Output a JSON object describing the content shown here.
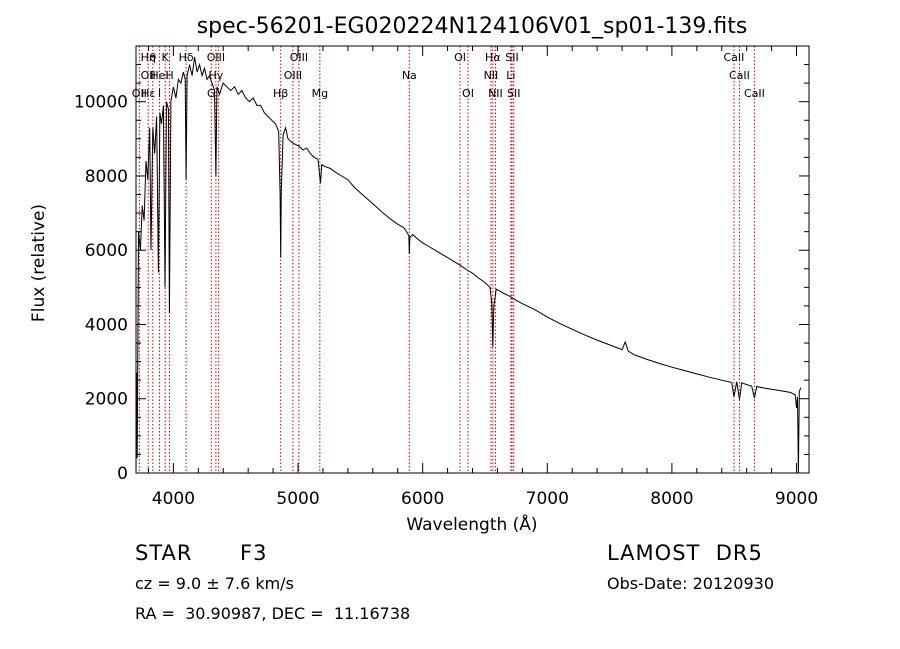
{
  "chart_data": {
    "type": "line",
    "title": "spec-56201-EG020224N124106V01_sp01-139.fits",
    "xlabel": "Wavelength (Å)",
    "ylabel": "Flux (relative)",
    "xlim": [
      3700,
      9100
    ],
    "ylim": [
      0,
      11500
    ],
    "x_ticks": [
      4000,
      5000,
      6000,
      7000,
      8000,
      9000
    ],
    "y_ticks": [
      0,
      2000,
      4000,
      6000,
      8000,
      10000
    ],
    "series": [
      {
        "points": [
          [
            3700,
            0
          ],
          [
            3705,
            2700
          ],
          [
            3710,
            400
          ],
          [
            3720,
            6500
          ],
          [
            3735,
            6000
          ],
          [
            3750,
            7200
          ],
          [
            3765,
            6800
          ],
          [
            3780,
            8400
          ],
          [
            3795,
            7900
          ],
          [
            3810,
            9300
          ],
          [
            3820,
            6000
          ],
          [
            3835,
            9300
          ],
          [
            3850,
            8600
          ],
          [
            3865,
            9600
          ],
          [
            3880,
            5400
          ],
          [
            3892,
            9700
          ],
          [
            3905,
            9400
          ],
          [
            3920,
            9900
          ],
          [
            3933,
            5000
          ],
          [
            3945,
            10000
          ],
          [
            3960,
            9800
          ],
          [
            3968,
            4300
          ],
          [
            3980,
            10000
          ],
          [
            4000,
            10400
          ],
          [
            4020,
            10100
          ],
          [
            4040,
            10600
          ],
          [
            4060,
            10500
          ],
          [
            4080,
            10800
          ],
          [
            4095,
            10600
          ],
          [
            4102,
            7900
          ],
          [
            4110,
            10700
          ],
          [
            4130,
            11000
          ],
          [
            4150,
            10700
          ],
          [
            4170,
            11200
          ],
          [
            4190,
            10800
          ],
          [
            4210,
            11000
          ],
          [
            4230,
            10700
          ],
          [
            4250,
            10900
          ],
          [
            4270,
            10600
          ],
          [
            4290,
            10700
          ],
          [
            4310,
            10500
          ],
          [
            4330,
            10300
          ],
          [
            4341,
            8000
          ],
          [
            4350,
            10400
          ],
          [
            4370,
            10200
          ],
          [
            4400,
            10500
          ],
          [
            4430,
            10400
          ],
          [
            4460,
            10300
          ],
          [
            4490,
            10400
          ],
          [
            4520,
            10200
          ],
          [
            4550,
            10300
          ],
          [
            4580,
            10100
          ],
          [
            4610,
            10000
          ],
          [
            4640,
            10100
          ],
          [
            4670,
            9900
          ],
          [
            4700,
            9900
          ],
          [
            4730,
            9700
          ],
          [
            4760,
            9600
          ],
          [
            4790,
            9500
          ],
          [
            4820,
            9400
          ],
          [
            4845,
            9200
          ],
          [
            4856,
            7500
          ],
          [
            4861,
            5800
          ],
          [
            4866,
            7600
          ],
          [
            4880,
            9100
          ],
          [
            4900,
            9300
          ],
          [
            4920,
            9000
          ],
          [
            4950,
            8900
          ],
          [
            4980,
            8850
          ],
          [
            5010,
            8800
          ],
          [
            5040,
            8700
          ],
          [
            5070,
            8750
          ],
          [
            5100,
            8600
          ],
          [
            5130,
            8500
          ],
          [
            5160,
            8450
          ],
          [
            5180,
            7800
          ],
          [
            5190,
            8300
          ],
          [
            5220,
            8250
          ],
          [
            5260,
            8200
          ],
          [
            5300,
            8100
          ],
          [
            5350,
            8000
          ],
          [
            5400,
            7900
          ],
          [
            5450,
            7700
          ],
          [
            5500,
            7550
          ],
          [
            5550,
            7400
          ],
          [
            5600,
            7250
          ],
          [
            5650,
            7100
          ],
          [
            5700,
            6950
          ],
          [
            5750,
            6820
          ],
          [
            5800,
            6700
          ],
          [
            5850,
            6600
          ],
          [
            5889,
            6400
          ],
          [
            5893,
            5900
          ],
          [
            5898,
            6350
          ],
          [
            5920,
            6420
          ],
          [
            5960,
            6300
          ],
          [
            6000,
            6200
          ],
          [
            6050,
            6100
          ],
          [
            6100,
            6000
          ],
          [
            6150,
            5900
          ],
          [
            6200,
            5800
          ],
          [
            6250,
            5700
          ],
          [
            6300,
            5600
          ],
          [
            6350,
            5480
          ],
          [
            6400,
            5380
          ],
          [
            6450,
            5250
          ],
          [
            6500,
            5130
          ],
          [
            6540,
            5000
          ],
          [
            6555,
            4600
          ],
          [
            6563,
            3400
          ],
          [
            6572,
            4500
          ],
          [
            6590,
            4950
          ],
          [
            6620,
            4900
          ],
          [
            6660,
            4820
          ],
          [
            6700,
            4760
          ],
          [
            6750,
            4650
          ],
          [
            6800,
            4560
          ],
          [
            6900,
            4400
          ],
          [
            7000,
            4200
          ],
          [
            7100,
            4030
          ],
          [
            7200,
            3870
          ],
          [
            7300,
            3720
          ],
          [
            7400,
            3580
          ],
          [
            7500,
            3450
          ],
          [
            7600,
            3320
          ],
          [
            7625,
            3530
          ],
          [
            7650,
            3280
          ],
          [
            7700,
            3180
          ],
          [
            7800,
            3060
          ],
          [
            7900,
            2950
          ],
          [
            8000,
            2850
          ],
          [
            8100,
            2760
          ],
          [
            8200,
            2670
          ],
          [
            8300,
            2580
          ],
          [
            8400,
            2500
          ],
          [
            8480,
            2440
          ],
          [
            8498,
            2050
          ],
          [
            8520,
            2460
          ],
          [
            8542,
            1980
          ],
          [
            8560,
            2430
          ],
          [
            8600,
            2380
          ],
          [
            8640,
            2340
          ],
          [
            8662,
            2020
          ],
          [
            8680,
            2330
          ],
          [
            8750,
            2280
          ],
          [
            8850,
            2230
          ],
          [
            8950,
            2170
          ],
          [
            8990,
            2100
          ],
          [
            9000,
            1750
          ],
          [
            9008,
            2050
          ],
          [
            9015,
            0
          ],
          [
            9022,
            2200
          ],
          [
            9035,
            2300
          ]
        ]
      }
    ],
    "lines": [
      {
        "x": 3727,
        "labels": [
          {
            "text": "OII",
            "row": 3
          }
        ]
      },
      {
        "x": 3798,
        "labels": [
          {
            "text": "Hη",
            "row": 1
          },
          {
            "text": "OII",
            "row": 2
          },
          {
            "text": "Hε",
            "row": 3
          }
        ]
      },
      {
        "x": 3835,
        "labels": [
          {
            "text": "θ",
            "row": 1
          }
        ]
      },
      {
        "x": 3889,
        "labels": [
          {
            "text": "HeI",
            "row": 2
          },
          {
            "text": "I",
            "row": 3
          }
        ]
      },
      {
        "x": 3934,
        "labels": [
          {
            "text": "K",
            "row": 1
          }
        ]
      },
      {
        "x": 3969,
        "labels": [
          {
            "text": "H",
            "row": 2
          }
        ]
      },
      {
        "x": 4102,
        "labels": [
          {
            "text": "Hδ",
            "row": 1
          }
        ]
      },
      {
        "x": 4304,
        "labels": [
          {
            "text": "G",
            "row": 3
          }
        ]
      },
      {
        "x": 4341,
        "labels": [
          {
            "text": "OIII",
            "row": 1
          },
          {
            "text": "Hγ",
            "row": 2
          }
        ]
      },
      {
        "x": 4363,
        "labels": []
      },
      {
        "x": 4861,
        "labels": [
          {
            "text": "Hβ",
            "row": 3
          }
        ]
      },
      {
        "x": 4959,
        "labels": [
          {
            "text": "OIII",
            "row": 2
          }
        ]
      },
      {
        "x": 5007,
        "labels": [
          {
            "text": "OIII",
            "row": 1
          }
        ]
      },
      {
        "x": 5175,
        "labels": [
          {
            "text": "Mg",
            "row": 3
          }
        ]
      },
      {
        "x": 5893,
        "labels": [
          {
            "text": "Na",
            "row": 2
          }
        ]
      },
      {
        "x": 6300,
        "labels": [
          {
            "text": "OI",
            "row": 1
          }
        ]
      },
      {
        "x": 6364,
        "labels": [
          {
            "text": "OI",
            "row": 3
          }
        ]
      },
      {
        "x": 6548,
        "labels": [
          {
            "text": "NII",
            "row": 2
          }
        ]
      },
      {
        "x": 6563,
        "labels": [
          {
            "text": "Hα",
            "row": 1
          }
        ]
      },
      {
        "x": 6584,
        "labels": [
          {
            "text": "NII",
            "row": 3
          }
        ]
      },
      {
        "x": 6708,
        "labels": [
          {
            "text": "Li",
            "row": 2
          }
        ]
      },
      {
        "x": 6717,
        "labels": [
          {
            "text": "SII",
            "row": 1
          }
        ]
      },
      {
        "x": 6731,
        "labels": [
          {
            "text": "SII",
            "row": 3
          }
        ]
      },
      {
        "x": 8498,
        "labels": [
          {
            "text": "CaII",
            "row": 1
          }
        ]
      },
      {
        "x": 8542,
        "labels": [
          {
            "text": "CaII",
            "row": 2
          }
        ]
      },
      {
        "x": 8662,
        "labels": [
          {
            "text": "CaII",
            "row": 3
          }
        ]
      }
    ],
    "grid": false,
    "line_color": "#000000",
    "marker_line_color": "#cc0000"
  },
  "info": {
    "object_class": "STAR",
    "subclass": "F3",
    "redshift_label": "cz = 9.0 ± 7.6 km/s",
    "coordinates": "RA =  30.90987, DEC =  11.16738",
    "survey": "LAMOST  DR5",
    "obs_date": "Obs-Date: 20120930"
  }
}
